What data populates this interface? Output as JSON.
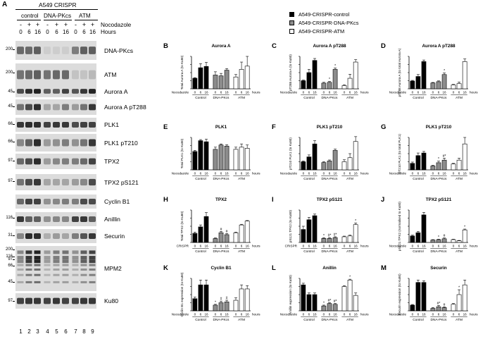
{
  "figure": {
    "panel_letter_a": "A",
    "cell_line": "A549 CRISPR",
    "groups": [
      "control",
      "DNA-PKcs",
      "ATM"
    ],
    "treatment_label": "Nocodazole",
    "treatment_signs": [
      "-",
      "+",
      "+",
      "-",
      "+",
      "+",
      "-",
      "+",
      "+"
    ],
    "time_label": "Hours",
    "times": [
      "0",
      "6",
      "16",
      "0",
      "6",
      "16",
      "0",
      "6",
      "16"
    ],
    "lanes": [
      "1",
      "2",
      "3",
      "4",
      "5",
      "6",
      "7",
      "8",
      "9"
    ]
  },
  "blots": [
    {
      "label": "DNA-PKcs",
      "markers": [
        "200"
      ]
    },
    {
      "label": "ATM",
      "markers": [
        "200"
      ]
    },
    {
      "label": "Aurora A",
      "markers": [
        "45"
      ]
    },
    {
      "label": "Aurora A pT288",
      "markers": [
        "45"
      ]
    },
    {
      "label": "PLK1",
      "markers": [
        "66"
      ]
    },
    {
      "label": "PLK1 pT210",
      "markers": [
        "66"
      ]
    },
    {
      "label": "TPX2",
      "markers": [
        "97"
      ]
    },
    {
      "label": "TPX2 pS121",
      "markers": [
        "97"
      ]
    },
    {
      "label": "Cyclin B1",
      "markers": []
    },
    {
      "label": "Anillin",
      "markers": [
        "116"
      ]
    },
    {
      "label": "Securin",
      "markers": [
        "31"
      ]
    },
    {
      "label": "MPM2",
      "markers": [
        "200",
        "116",
        "97",
        "66",
        "45"
      ]
    },
    {
      "label": "Ku80",
      "markers": [
        "97"
      ]
    }
  ],
  "legend": [
    {
      "name": "A549-CRISPR-control",
      "color": "#000000"
    },
    {
      "name": "A549-CRISPR-DNA-PKcs",
      "color": "#8c8c8c"
    },
    {
      "name": "A549-CRISPR-ATM",
      "color": "#ffffff"
    }
  ],
  "axis_common": {
    "row_label_default": "Nocodazole",
    "row_label_crispr": "CRISPR",
    "time_ticks": [
      "0",
      "6",
      "16",
      "0",
      "6",
      "16",
      "0",
      "6",
      "16"
    ],
    "unit": "hours",
    "groups": [
      "Control",
      "DNA-PKcs",
      "ATM"
    ]
  },
  "chart_data": [
    {
      "letter": "B",
      "type": "bar",
      "title": "Aurora A",
      "ylabel": "Total Aurora A (to Ku80)",
      "ylim": [
        0,
        2
      ],
      "values": [
        0.65,
        1.3,
        1.38,
        0.85,
        0.8,
        1.15,
        0.73,
        1.2,
        1.4
      ],
      "errors": [
        0.04,
        0.25,
        0.25,
        0.2,
        0.15,
        0.1,
        0.15,
        0.45,
        0.6
      ],
      "marks": [
        "",
        "",
        "",
        "",
        "",
        "",
        "",
        "",
        ""
      ],
      "row_label": "Nocodazole"
    },
    {
      "letter": "C",
      "type": "bar",
      "title": "Aurora A pT288",
      "ylabel": "pT288 Aurora A (to Ku80)",
      "ylim": [
        0,
        2
      ],
      "values": [
        0.5,
        1.0,
        1.75,
        0.35,
        0.4,
        1.2,
        0.2,
        0.65,
        1.65
      ],
      "errors": [
        0.04,
        0.2,
        0.12,
        0.05,
        0.05,
        0.08,
        0.05,
        0.25,
        0.15
      ],
      "marks": [
        "",
        "",
        "",
        "",
        "*",
        "*",
        "",
        "",
        ""
      ],
      "row_label": "Nocodazole"
    },
    {
      "letter": "D",
      "type": "bar",
      "title": "Aurora A pT288",
      "ylabel": "pT288 Aurora A (to total Aurora A)",
      "ylim": [
        0,
        2.5
      ],
      "values": [
        0.6,
        0.95,
        2.1,
        0.45,
        0.55,
        1.1,
        0.3,
        0.4,
        2.1
      ],
      "errors": [
        0.05,
        0.15,
        0.12,
        0.04,
        0.06,
        0.12,
        0.04,
        0.12,
        0.2
      ],
      "marks": [
        "",
        "",
        "",
        "",
        "",
        "*",
        "",
        "",
        ""
      ],
      "row_label": "Nocodazole"
    },
    {
      "letter": "E",
      "type": "bar",
      "title": "PLK1",
      "ylabel": "Total PLK1 (to Ku80)",
      "ylim": [
        0,
        1.5
      ],
      "values": [
        0.85,
        1.35,
        1.3,
        0.95,
        1.15,
        1.1,
        0.95,
        1.05,
        1.0
      ],
      "errors": [
        0.05,
        0.05,
        0.12,
        0.1,
        0.05,
        0.06,
        0.1,
        0.15,
        0.15
      ],
      "marks": [
        "",
        "",
        "",
        "",
        "",
        "",
        "",
        "",
        ""
      ],
      "row_label": "Nocodazole"
    },
    {
      "letter": "F",
      "type": "bar",
      "title": "PLK1 pT210",
      "ylabel": "pT210 PLK1 (to Ku80)",
      "ylim": [
        0,
        2
      ],
      "values": [
        0.5,
        0.8,
        1.6,
        0.45,
        0.55,
        1.2,
        0.5,
        0.75,
        1.75
      ],
      "errors": [
        0.05,
        0.12,
        0.2,
        0.05,
        0.06,
        0.08,
        0.12,
        0.25,
        0.3
      ],
      "marks": [
        "",
        "",
        "",
        "",
        "",
        "",
        "",
        "",
        ""
      ],
      "row_label": "Nocodazole"
    },
    {
      "letter": "G",
      "type": "bar",
      "title": "PLK1 pT210",
      "ylabel": "pT210 PLK1 (to total PLK1)",
      "ylim": [
        0,
        2.5
      ],
      "values": [
        0.5,
        1.1,
        1.3,
        0.3,
        0.55,
        0.75,
        0.45,
        0.75,
        2.0
      ],
      "errors": [
        0.1,
        0.2,
        0.12,
        0.05,
        0.12,
        0.15,
        0.05,
        0.15,
        0.5
      ],
      "marks": [
        "",
        "",
        "",
        "",
        "*",
        "#*",
        "",
        "",
        ""
      ],
      "row_label": "Nocodazole"
    },
    {
      "letter": "H",
      "type": "bar",
      "title": "TPX2",
      "ylabel": "Total TPX2 (to Ku80)",
      "ylim": [
        0,
        2.5
      ],
      "values": [
        0.7,
        1.2,
        2.0,
        0.3,
        0.75,
        0.6,
        0.75,
        1.35,
        1.65
      ],
      "errors": [
        0.1,
        0.15,
        0.3,
        0.05,
        0.1,
        0.08,
        0.05,
        0.05,
        0.04
      ],
      "marks": [
        "",
        "",
        "",
        "",
        "#",
        "#",
        "",
        "",
        ""
      ],
      "row_label": "CRISPR"
    },
    {
      "letter": "I",
      "type": "bar",
      "title": "TPX2 pS121",
      "ylabel": "pS121 TPX2 (to Ku80)",
      "ylim": [
        0,
        2
      ],
      "values": [
        0.8,
        1.4,
        1.65,
        0.25,
        0.25,
        0.3,
        0.35,
        0.4,
        1.1
      ],
      "errors": [
        0.2,
        0.15,
        0.1,
        0.04,
        0.05,
        0.05,
        0.04,
        0.05,
        0.1
      ],
      "marks": [
        "",
        "",
        "",
        "*",
        "#*",
        "#*",
        "",
        "",
        "*"
      ],
      "row_label": "CRISPR"
    },
    {
      "letter": "J",
      "type": "bar",
      "title": "TPX2 pS121",
      "ylabel": "pS121 TPX2 (normalised to Ku80)",
      "ylim": [
        0,
        4
      ],
      "values": [
        0.8,
        1.2,
        3.4,
        0.3,
        0.35,
        0.45,
        0.35,
        0.2,
        1.55
      ],
      "errors": [
        0.1,
        0.15,
        0.3,
        0.05,
        0.05,
        0.1,
        0.05,
        0.05,
        0.1
      ],
      "marks": [
        "",
        "",
        "",
        "",
        "*",
        "#",
        "",
        "",
        "*"
      ],
      "row_label": "Nocodazole"
    },
    {
      "letter": "K",
      "type": "bar",
      "title": "Cyclin B1",
      "ylabel": "Cyclin B1 expression (to Ku80)",
      "ylim": [
        0,
        2
      ],
      "values": [
        0.75,
        1.6,
        1.6,
        0.35,
        0.5,
        0.55,
        0.65,
        1.35,
        1.35
      ],
      "errors": [
        0.1,
        0.3,
        0.3,
        0.05,
        0.1,
        0.1,
        0.15,
        0.25,
        0.2
      ],
      "marks": [
        "",
        "",
        "",
        "*",
        "#",
        "#",
        "",
        "",
        ""
      ],
      "row_label": "Nocodazole"
    },
    {
      "letter": "L",
      "type": "bar",
      "title": "Anillin",
      "ylabel": "Anillin expression (to Ku80)",
      "ylim": [
        0,
        2
      ],
      "values": [
        1.6,
        1.0,
        1.0,
        0.3,
        0.45,
        0.4,
        1.5,
        1.9,
        0.95
      ],
      "errors": [
        0.1,
        0.1,
        0.1,
        0.05,
        0.05,
        0.05,
        0.05,
        0.05,
        0.15
      ],
      "marks": [
        "",
        "",
        "",
        "*",
        "#*",
        "#*",
        "",
        "*",
        ""
      ],
      "row_label": "Nocodazole"
    },
    {
      "letter": "M",
      "type": "bar",
      "title": "Securin",
      "ylabel": "Securin expression (to Ku80)",
      "ylim": [
        0,
        2
      ],
      "values": [
        0.35,
        1.75,
        1.75,
        0.15,
        0.25,
        0.2,
        0.4,
        1.0,
        1.6
      ],
      "errors": [
        0.04,
        0.15,
        0.1,
        0.05,
        0.08,
        0.05,
        0.05,
        0.3,
        0.3
      ],
      "marks": [
        "",
        "",
        "",
        "",
        "#*",
        "#",
        "",
        "*",
        ""
      ],
      "row_label": "Nocodazole"
    }
  ]
}
